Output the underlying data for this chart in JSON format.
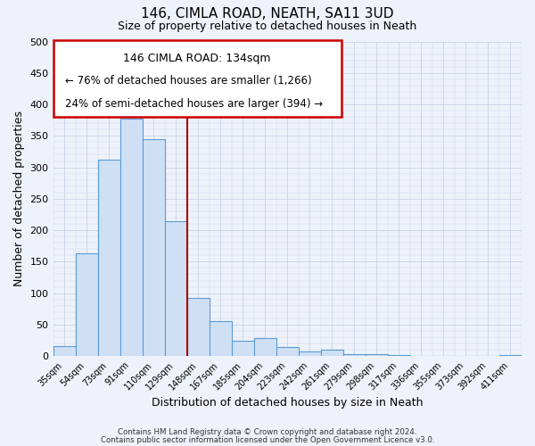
{
  "title": "146, CIMLA ROAD, NEATH, SA11 3UD",
  "subtitle": "Size of property relative to detached houses in Neath",
  "xlabel": "Distribution of detached houses by size in Neath",
  "ylabel": "Number of detached properties",
  "bar_color": "#cfe0f5",
  "bar_edge_color": "#5b9bd5",
  "background_color": "#eef2fa",
  "categories": [
    "35sqm",
    "54sqm",
    "73sqm",
    "91sqm",
    "110sqm",
    "129sqm",
    "148sqm",
    "167sqm",
    "185sqm",
    "204sqm",
    "223sqm",
    "242sqm",
    "261sqm",
    "279sqm",
    "298sqm",
    "317sqm",
    "336sqm",
    "355sqm",
    "373sqm",
    "392sqm",
    "411sqm"
  ],
  "values": [
    16,
    163,
    312,
    377,
    345,
    215,
    93,
    55,
    25,
    29,
    15,
    8,
    10,
    3,
    3,
    1,
    0,
    0,
    0,
    0,
    1
  ],
  "ylim": [
    0,
    500
  ],
  "yticks": [
    0,
    50,
    100,
    150,
    200,
    250,
    300,
    350,
    400,
    450,
    500
  ],
  "vline_bin_index": 6,
  "annotation_title": "146 CIMLA ROAD: 134sqm",
  "annotation_line1": "← 76% of detached houses are smaller (1,266)",
  "annotation_line2": "24% of semi-detached houses are larger (394) →",
  "annotation_box_color": "#ffffff",
  "annotation_box_edge_color": "#cc0000",
  "footer_line1": "Contains HM Land Registry data © Crown copyright and database right 2024.",
  "footer_line2": "Contains public sector information licensed under the Open Government Licence v3.0.",
  "grid_color": "#c8d4e8",
  "vline_color": "#aa0000",
  "figsize": [
    6.0,
    5.0
  ],
  "dpi": 100
}
